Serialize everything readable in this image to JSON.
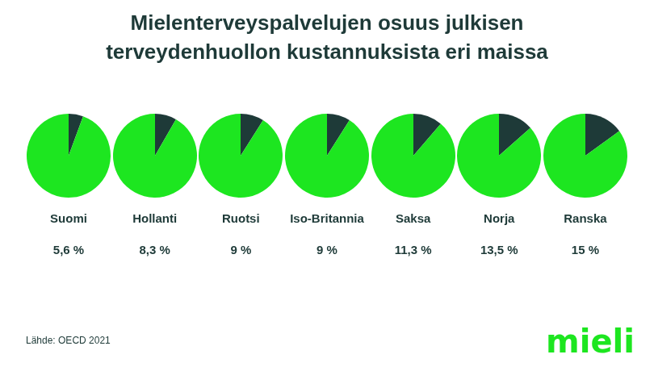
{
  "title": "Mielenterveyspalvelujen osuus julkisen\nterveydenhuollon kustannuksista eri maissa",
  "annotations": [
    {
      "text": "Lähde: OECD 2021"
    },
    {
      "text": "mieli",
      "color": "#1de620"
    }
  ],
  "chart_data": [
    {
      "type": "pie",
      "title": "Suomi",
      "values": [
        5.6,
        94.4
      ],
      "value_labels": [
        "5,6 %",
        null
      ],
      "colors": [
        "#1e3a38",
        "#1de620"
      ],
      "data_labels": true
    },
    {
      "type": "pie",
      "title": "Hollanti",
      "values": [
        8.3,
        91.7
      ],
      "value_labels": [
        "8,3 %",
        null
      ],
      "colors": [
        "#1e3a38",
        "#1de620"
      ],
      "data_labels": true
    },
    {
      "type": "pie",
      "title": "Ruotsi",
      "values": [
        9.0,
        91.0
      ],
      "value_labels": [
        "9 %",
        null
      ],
      "colors": [
        "#1e3a38",
        "#1de620"
      ],
      "data_labels": true
    },
    {
      "type": "pie",
      "title": "Iso-Britannia",
      "values": [
        9.0,
        91.0
      ],
      "value_labels": [
        "9 %",
        null
      ],
      "colors": [
        "#1e3a38",
        "#1de620"
      ],
      "data_labels": true
    },
    {
      "type": "pie",
      "title": "Saksa",
      "values": [
        11.3,
        88.7
      ],
      "value_labels": [
        "11,3 %",
        null
      ],
      "colors": [
        "#1e3a38",
        "#1de620"
      ],
      "data_labels": true
    },
    {
      "type": "pie",
      "title": "Norja",
      "values": [
        13.5,
        86.5
      ],
      "value_labels": [
        "13,5 %",
        null
      ],
      "colors": [
        "#1e3a38",
        "#1de620"
      ],
      "data_labels": true
    },
    {
      "type": "pie",
      "title": "Ranska",
      "values": [
        15.0,
        85.0
      ],
      "value_labels": [
        "15 %",
        null
      ],
      "colors": [
        "#1e3a38",
        "#1de620"
      ],
      "data_labels": true
    }
  ]
}
